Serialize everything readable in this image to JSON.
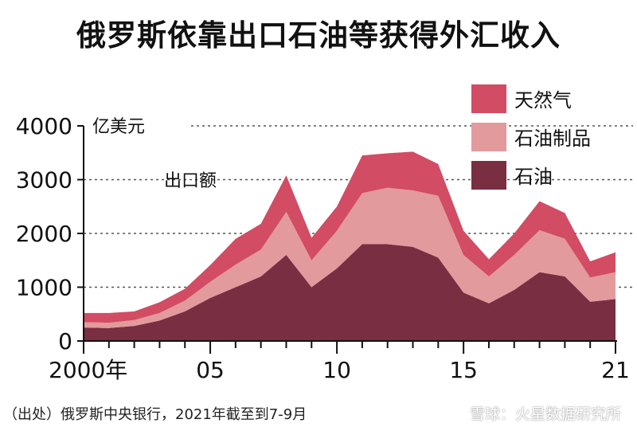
{
  "title": "俄罗斯依靠出口石油等获得外汇收入",
  "source": "（出处）俄罗斯中央银行，2021年截至到7-9月",
  "watermark": "雪球：火星数据研究所",
  "chart_data": {
    "type": "area",
    "stacked": true,
    "unit_label": "亿美元",
    "annotation": "出口额",
    "x": [
      2000,
      2001,
      2002,
      2003,
      2004,
      2005,
      2006,
      2007,
      2008,
      2009,
      2010,
      2011,
      2012,
      2013,
      2014,
      2015,
      2016,
      2017,
      2018,
      2019,
      2020,
      2021
    ],
    "x_tick_labels": [
      {
        "x": 2000,
        "label": "2000年"
      },
      {
        "x": 2005,
        "label": "05"
      },
      {
        "x": 2010,
        "label": "10"
      },
      {
        "x": 2015,
        "label": "15"
      },
      {
        "x": 2021,
        "label": "21"
      }
    ],
    "ylim": [
      0,
      4000
    ],
    "y_ticks": [
      0,
      1000,
      2000,
      3000,
      4000
    ],
    "grid": "dotted horizontal",
    "legend_position": "top-right",
    "series": [
      {
        "name": "石油",
        "color": "#7a2e42",
        "values": [
          250,
          240,
          280,
          380,
          550,
          800,
          1000,
          1200,
          1600,
          1000,
          1350,
          1800,
          1800,
          1750,
          1550,
          900,
          700,
          950,
          1280,
          1200,
          730,
          780
        ]
      },
      {
        "name": "石油制品",
        "color": "#e29a9c",
        "values": [
          100,
          100,
          110,
          140,
          200,
          300,
          420,
          500,
          800,
          500,
          700,
          950,
          1050,
          1050,
          1150,
          700,
          500,
          650,
          780,
          700,
          450,
          500
        ]
      },
      {
        "name": "天然气",
        "color": "#d24c63",
        "values": [
          170,
          180,
          160,
          200,
          220,
          310,
          480,
          480,
          680,
          420,
          450,
          700,
          640,
          720,
          590,
          450,
          320,
          400,
          540,
          480,
          300,
          370
        ]
      }
    ]
  }
}
